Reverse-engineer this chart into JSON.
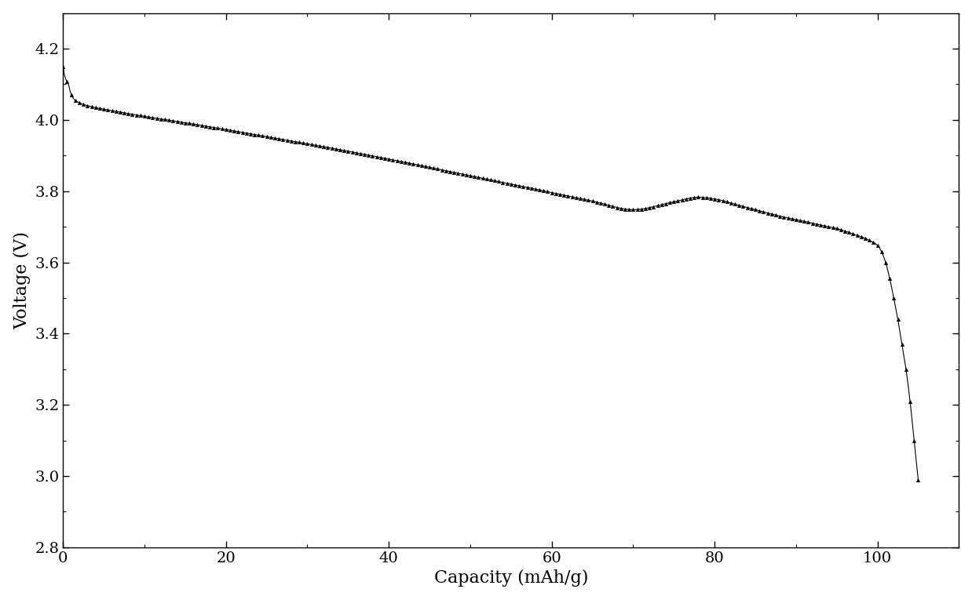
{
  "xlabel": "Capacity (mAh/g)",
  "ylabel": "Voltage (V)",
  "xlim": [
    0,
    110
  ],
  "ylim": [
    2.8,
    4.3
  ],
  "xticks": [
    0,
    20,
    40,
    60,
    80,
    100
  ],
  "yticks": [
    2.8,
    3.0,
    3.2,
    3.4,
    3.6,
    3.8,
    4.0,
    4.2
  ],
  "line_color": "#000000",
  "marker": "^",
  "marker_size": 3,
  "marker_color": "#000000",
  "background_color": "#ffffff",
  "xlabel_fontsize": 16,
  "ylabel_fontsize": 16,
  "tick_fontsize": 14,
  "key_points": [
    [
      0.0,
      4.15
    ],
    [
      0.3,
      4.115
    ],
    [
      0.6,
      4.105
    ],
    [
      1.0,
      4.07
    ],
    [
      1.5,
      4.055
    ],
    [
      2.0,
      4.048
    ],
    [
      3.0,
      4.04
    ],
    [
      5.0,
      4.03
    ],
    [
      8.0,
      4.018
    ],
    [
      10.0,
      4.01
    ],
    [
      15.0,
      3.992
    ],
    [
      20.0,
      3.973
    ],
    [
      25.0,
      3.953
    ],
    [
      30.0,
      3.933
    ],
    [
      35.0,
      3.912
    ],
    [
      40.0,
      3.89
    ],
    [
      45.0,
      3.867
    ],
    [
      50.0,
      3.843
    ],
    [
      55.0,
      3.82
    ],
    [
      60.0,
      3.796
    ],
    [
      65.0,
      3.772
    ],
    [
      70.0,
      3.748
    ],
    [
      75.0,
      3.77
    ],
    [
      78.0,
      3.783
    ],
    [
      80.0,
      3.778
    ],
    [
      83.0,
      3.76
    ],
    [
      85.0,
      3.748
    ],
    [
      88.0,
      3.73
    ],
    [
      90.0,
      3.72
    ],
    [
      92.0,
      3.71
    ],
    [
      94.0,
      3.7
    ],
    [
      95.0,
      3.695
    ],
    [
      96.0,
      3.688
    ],
    [
      97.0,
      3.68
    ],
    [
      98.0,
      3.672
    ],
    [
      99.0,
      3.662
    ],
    [
      100.0,
      3.648
    ],
    [
      100.5,
      3.63
    ],
    [
      101.0,
      3.6
    ],
    [
      101.5,
      3.555
    ],
    [
      102.0,
      3.5
    ],
    [
      102.5,
      3.44
    ],
    [
      103.0,
      3.37
    ],
    [
      103.5,
      3.3
    ],
    [
      104.0,
      3.21
    ],
    [
      104.5,
      3.1
    ],
    [
      105.0,
      2.99
    ]
  ]
}
